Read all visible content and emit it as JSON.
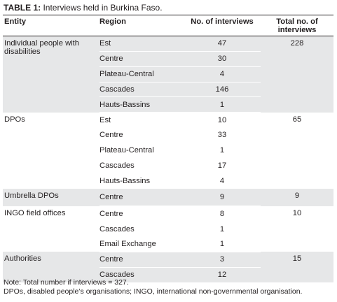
{
  "caption": {
    "label": "TABLE 1:",
    "text": " Interviews held in Burkina Faso."
  },
  "headers": {
    "entity": "Entity",
    "region": "Region",
    "count": "No. of interviews",
    "total": "Total no. of interviews"
  },
  "groups": [
    {
      "entity": "Individual people with disabilities",
      "total": "228",
      "rows": [
        {
          "region": "Est",
          "count": "47"
        },
        {
          "region": "Centre",
          "count": "30"
        },
        {
          "region": "Plateau-Central",
          "count": "4"
        },
        {
          "region": "Cascades",
          "count": "146"
        },
        {
          "region": "Hauts-Bassins",
          "count": "1"
        }
      ]
    },
    {
      "entity": "DPOs",
      "total": "65",
      "rows": [
        {
          "region": "Est",
          "count": "10"
        },
        {
          "region": "Centre",
          "count": "33"
        },
        {
          "region": "Plateau-Central",
          "count": "1"
        },
        {
          "region": "Cascades",
          "count": "17"
        },
        {
          "region": "Hauts-Bassins",
          "count": "4"
        }
      ]
    },
    {
      "entity": "Umbrella DPOs",
      "total": "9",
      "rows": [
        {
          "region": "Centre",
          "count": "9"
        }
      ]
    },
    {
      "entity": "INGO field offices",
      "total": "10",
      "rows": [
        {
          "region": "Centre",
          "count": "8"
        },
        {
          "region": "Cascades",
          "count": "1"
        },
        {
          "region": "Email Exchange",
          "count": "1"
        }
      ]
    },
    {
      "entity": "Authorities",
      "total": "15",
      "rows": [
        {
          "region": "Centre",
          "count": "3"
        },
        {
          "region": "Cascades",
          "count": "12"
        }
      ]
    }
  ],
  "notes": [
    "Note: Total number if interviews = 327.",
    "DPOs, disabled people’s organisations; INGO, international non-governmental organisation."
  ]
}
